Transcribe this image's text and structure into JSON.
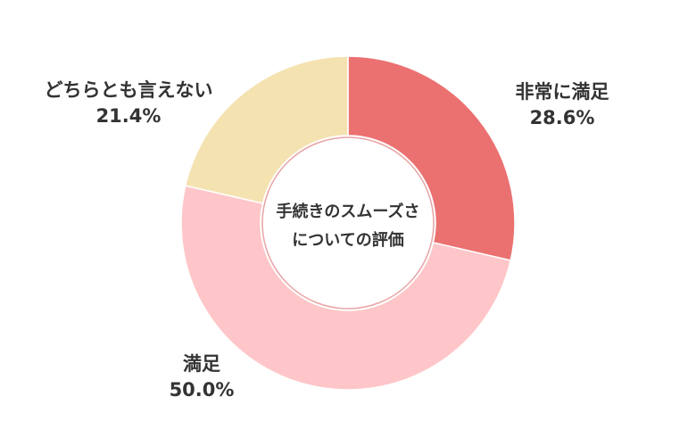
{
  "chart_data": {
    "type": "pie",
    "donut": true,
    "center_text": [
      "手続きのスムーズさ",
      "についての評価"
    ],
    "slices": [
      {
        "label": "非常に満足",
        "value": 28.6,
        "value_label": "28.6%",
        "color": "#eb7171"
      },
      {
        "label": "満足",
        "value": 50.0,
        "value_label": "50.0%",
        "color": "#fec6c8"
      },
      {
        "label": "どちらとも言えない",
        "value": 21.4,
        "value_label": "21.4%",
        "color": "#f5e2b1"
      }
    ]
  }
}
